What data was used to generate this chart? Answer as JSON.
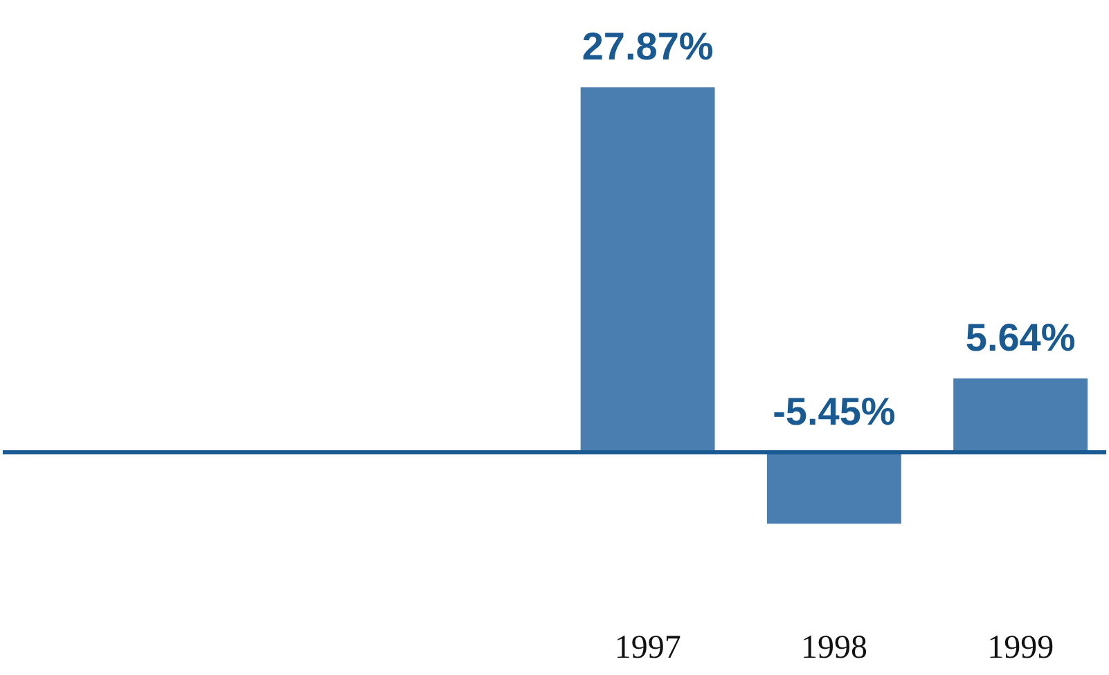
{
  "chart_data": {
    "type": "bar",
    "categories": [
      null,
      null,
      null,
      "1997",
      "1998",
      "1999"
    ],
    "values": [
      null,
      null,
      null,
      27.87,
      -5.45,
      5.64
    ],
    "value_labels": [
      null,
      null,
      null,
      "27.87%",
      "-5.45%",
      "5.64%"
    ],
    "color": "#4a7eb0",
    "ref_lines": [
      {
        "axis": "y",
        "value": 0,
        "color": "#1a5a92"
      }
    ]
  }
}
